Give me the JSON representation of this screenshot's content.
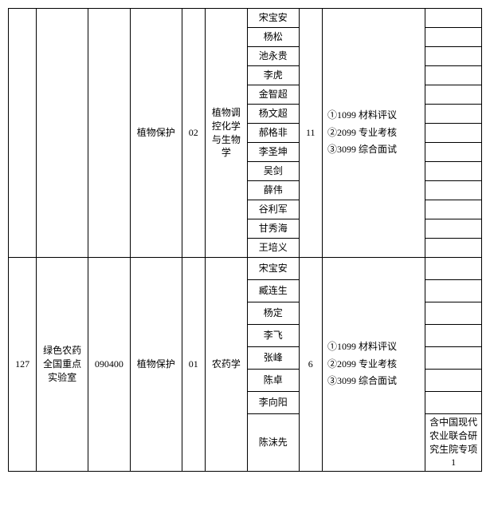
{
  "block1": {
    "col_a": "",
    "col_b": "",
    "col_c": "",
    "major": "植物保护",
    "code": "02",
    "direction": "植物调控化学与生物学",
    "quota": "11",
    "exam": "①1099 材料评议\n②2099 专业考核\n③3099 综合面试",
    "names": [
      "宋宝安",
      "杨松",
      "池永贵",
      "李虎",
      "金智超",
      "杨文超",
      "郝格非",
      "李圣坤",
      "吴剑",
      "薛伟",
      "谷利军",
      "甘秀海",
      "王培义"
    ],
    "notes": [
      "",
      "",
      "",
      "",
      "",
      "",
      "",
      "",
      "",
      "",
      "",
      "",
      ""
    ]
  },
  "block2": {
    "col_a": "127",
    "col_b": "绿色农药全国重点实验室",
    "col_c": "090400",
    "major": "植物保护",
    "code": "01",
    "direction": "农药学",
    "quota": "6",
    "exam": "①1099 材料评议\n②2099 专业考核\n③3099 综合面试",
    "names": [
      "宋宝安",
      "臧连生",
      "杨定",
      "李飞",
      "张峰",
      "陈卓",
      "李向阳",
      "陈沫先"
    ],
    "notes": [
      "",
      "",
      "",
      "",
      "",
      "",
      "",
      "含中国现代农业联合研究生院专项1"
    ]
  }
}
